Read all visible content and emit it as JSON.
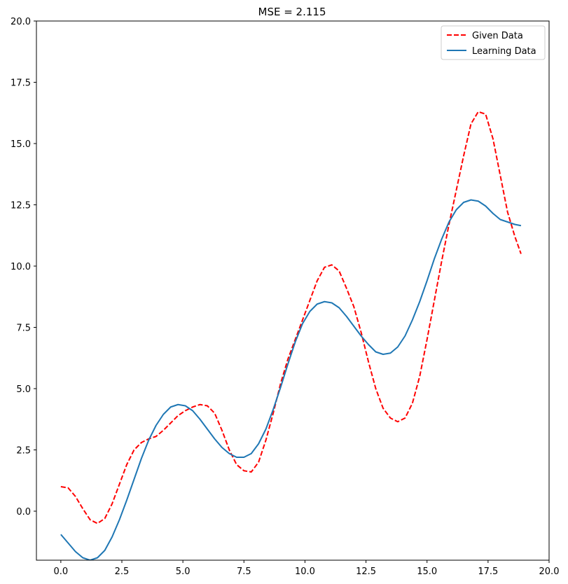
{
  "chart_data": {
    "type": "line",
    "title": "MSE = 2.115",
    "xlabel": "",
    "ylabel": "",
    "xlim": [
      -1,
      20
    ],
    "ylim": [
      -2,
      20
    ],
    "xticks": [
      0.0,
      2.5,
      5.0,
      7.5,
      10.0,
      12.5,
      15.0,
      17.5,
      20.0
    ],
    "xtick_labels": [
      "0.0",
      "2.5",
      "5.0",
      "7.5",
      "10.0",
      "12.5",
      "15.0",
      "17.5",
      "20.0"
    ],
    "yticks": [
      0.0,
      2.5,
      5.0,
      7.5,
      10.0,
      12.5,
      15.0,
      17.5,
      20.0
    ],
    "ytick_labels": [
      "0.0",
      "2.5",
      "5.0",
      "7.5",
      "10.0",
      "12.5",
      "15.0",
      "17.5",
      "20.0"
    ],
    "grid": false,
    "legend_position": "top-right",
    "series": [
      {
        "name": "Given Data",
        "color": "#ff0000",
        "dash": "dashed",
        "x": [
          0.0,
          0.3,
          0.6,
          0.9,
          1.2,
          1.5,
          1.8,
          2.1,
          2.4,
          2.7,
          3.0,
          3.3,
          3.6,
          3.9,
          4.2,
          4.5,
          4.8,
          5.1,
          5.4,
          5.7,
          6.0,
          6.3,
          6.6,
          6.9,
          7.2,
          7.5,
          7.8,
          8.1,
          8.4,
          8.7,
          9.0,
          9.3,
          9.6,
          9.9,
          10.2,
          10.5,
          10.8,
          11.1,
          11.4,
          11.7,
          12.0,
          12.3,
          12.6,
          12.9,
          13.2,
          13.5,
          13.8,
          14.1,
          14.4,
          14.7,
          15.0,
          15.3,
          15.6,
          15.9,
          16.2,
          16.5,
          16.8,
          17.1,
          17.4,
          17.7,
          18.0,
          18.3,
          18.6,
          18.85
        ],
        "y": [
          1.0,
          0.95,
          0.6,
          0.1,
          -0.35,
          -0.5,
          -0.3,
          0.3,
          1.1,
          1.9,
          2.5,
          2.8,
          2.95,
          3.05,
          3.3,
          3.6,
          3.9,
          4.1,
          4.25,
          4.35,
          4.3,
          4.0,
          3.3,
          2.5,
          1.9,
          1.65,
          1.6,
          2.0,
          2.9,
          4.0,
          5.2,
          6.2,
          7.0,
          7.8,
          8.6,
          9.4,
          9.95,
          10.05,
          9.8,
          9.1,
          8.35,
          7.3,
          6.1,
          5.0,
          4.2,
          3.8,
          3.65,
          3.8,
          4.4,
          5.5,
          7.0,
          8.6,
          10.2,
          11.7,
          13.1,
          14.5,
          15.8,
          16.3,
          16.2,
          15.2,
          13.7,
          12.2,
          11.2,
          10.5
        ]
      },
      {
        "name": "Learning Data",
        "color": "#1f77b4",
        "dash": "solid",
        "x": [
          0.0,
          0.3,
          0.6,
          0.9,
          1.2,
          1.5,
          1.8,
          2.1,
          2.4,
          2.7,
          3.0,
          3.3,
          3.6,
          3.9,
          4.2,
          4.5,
          4.8,
          5.1,
          5.4,
          5.7,
          6.0,
          6.3,
          6.6,
          6.9,
          7.2,
          7.5,
          7.8,
          8.1,
          8.4,
          8.7,
          9.0,
          9.3,
          9.6,
          9.9,
          10.2,
          10.5,
          10.8,
          11.1,
          11.4,
          11.7,
          12.0,
          12.3,
          12.6,
          12.9,
          13.2,
          13.5,
          13.8,
          14.1,
          14.4,
          14.7,
          15.0,
          15.3,
          15.6,
          15.9,
          16.2,
          16.5,
          16.8,
          17.1,
          17.4,
          17.7,
          18.0,
          18.3,
          18.6,
          18.85
        ],
        "y": [
          -0.95,
          -1.3,
          -1.65,
          -1.9,
          -2.0,
          -1.9,
          -1.6,
          -1.05,
          -0.35,
          0.45,
          1.3,
          2.15,
          2.9,
          3.5,
          3.95,
          4.25,
          4.35,
          4.3,
          4.1,
          3.75,
          3.35,
          2.95,
          2.6,
          2.35,
          2.2,
          2.2,
          2.35,
          2.75,
          3.35,
          4.15,
          5.05,
          6.0,
          6.9,
          7.65,
          8.15,
          8.45,
          8.55,
          8.5,
          8.3,
          7.95,
          7.55,
          7.15,
          6.8,
          6.5,
          6.4,
          6.45,
          6.7,
          7.15,
          7.8,
          8.55,
          9.4,
          10.3,
          11.1,
          11.8,
          12.3,
          12.6,
          12.7,
          12.65,
          12.45,
          12.15,
          11.9,
          11.8,
          11.7,
          11.65
        ]
      }
    ]
  }
}
